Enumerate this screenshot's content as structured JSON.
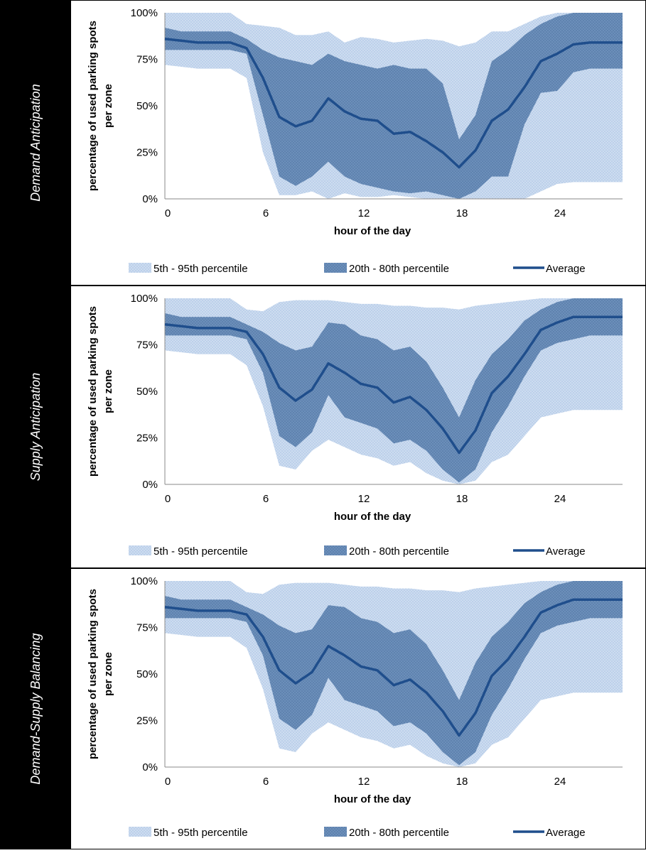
{
  "colors": {
    "outer_band": "#bcd0ea",
    "outer_dots": "#e3ecf8",
    "inner_band": "#6c8fba",
    "inner_dots": "#4f73a1",
    "average": "#1f4e8c",
    "side_panel": "#000000",
    "frame": "#000000"
  },
  "legend": {
    "outer_band": "5th - 95th percentile",
    "inner_band": "20th - 80th percentile",
    "average": "Average"
  },
  "chart_data": [
    {
      "type": "area",
      "panel_label": "Demand Anticipation",
      "xlabel": "hour of the day",
      "ylabel_line1": "percentage of used parking spots",
      "ylabel_line2": "per zone",
      "xlim": [
        0,
        28
      ],
      "ylim": [
        0,
        100
      ],
      "x_ticks": [
        0,
        6,
        12,
        18,
        24
      ],
      "y_ticks": [
        "0%",
        "25%",
        "50%",
        "75%",
        "100%"
      ],
      "x": [
        0,
        1,
        2,
        3,
        4,
        5,
        6,
        7,
        8,
        9,
        10,
        11,
        12,
        13,
        14,
        15,
        16,
        17,
        18,
        19,
        20,
        21,
        22,
        23,
        24,
        25,
        26,
        27,
        28
      ],
      "series": [
        {
          "name": "5th - 95th percentile",
          "role": "p5",
          "values": [
            72,
            71,
            70,
            70,
            70,
            65,
            25,
            2,
            2,
            4,
            0,
            3,
            1,
            1,
            2,
            1,
            0,
            0,
            0,
            0,
            0,
            0,
            0,
            4,
            8,
            9,
            9,
            9,
            9
          ]
        },
        {
          "name": "5th - 95th percentile",
          "role": "p95",
          "values": [
            100,
            100,
            100,
            100,
            100,
            94,
            93,
            92,
            88,
            88,
            90,
            84,
            87,
            86,
            84,
            85,
            86,
            85,
            82,
            84,
            90,
            90,
            94,
            98,
            100,
            100,
            100,
            100,
            100
          ]
        },
        {
          "name": "20th - 80th percentile",
          "role": "p20",
          "values": [
            80,
            80,
            80,
            80,
            80,
            78,
            45,
            12,
            7,
            12,
            20,
            12,
            8,
            6,
            4,
            3,
            4,
            2,
            0,
            4,
            12,
            12,
            40,
            57,
            58,
            68,
            70,
            70,
            70
          ]
        },
        {
          "name": "20th - 80th percentile",
          "role": "p80",
          "values": [
            92,
            90,
            90,
            90,
            90,
            86,
            80,
            76,
            74,
            72,
            78,
            74,
            72,
            70,
            72,
            70,
            70,
            62,
            32,
            45,
            74,
            80,
            88,
            94,
            98,
            100,
            100,
            100,
            100
          ]
        },
        {
          "name": "Average",
          "role": "mean",
          "values": [
            86,
            85,
            84,
            84,
            84,
            81,
            65,
            44,
            39,
            42,
            54,
            47,
            43,
            42,
            35,
            36,
            31,
            25,
            17,
            26,
            42,
            48,
            60,
            74,
            78,
            83,
            84,
            84,
            84
          ]
        }
      ]
    },
    {
      "type": "area",
      "panel_label": "Supply Anticipation",
      "xlabel": "hour of the day",
      "ylabel_line1": "percentage of used parking spots",
      "ylabel_line2": "per zone",
      "xlim": [
        0,
        28
      ],
      "ylim": [
        0,
        100
      ],
      "x_ticks": [
        0,
        6,
        12,
        18,
        24
      ],
      "y_ticks": [
        "0%",
        "25%",
        "50%",
        "75%",
        "100%"
      ],
      "x": [
        0,
        1,
        2,
        3,
        4,
        5,
        6,
        7,
        8,
        9,
        10,
        11,
        12,
        13,
        14,
        15,
        16,
        17,
        18,
        19,
        20,
        21,
        22,
        23,
        24,
        25,
        26,
        27,
        28
      ],
      "series": [
        {
          "name": "5th - 95th percentile",
          "role": "p5",
          "values": [
            72,
            71,
            70,
            70,
            70,
            64,
            42,
            10,
            8,
            18,
            24,
            20,
            16,
            14,
            10,
            12,
            6,
            2,
            0,
            2,
            12,
            16,
            26,
            36,
            38,
            40,
            40,
            40,
            40
          ]
        },
        {
          "name": "5th - 95th percentile",
          "role": "p95",
          "values": [
            100,
            100,
            100,
            100,
            100,
            94,
            93,
            98,
            99,
            99,
            99,
            98,
            97,
            97,
            96,
            96,
            95,
            95,
            94,
            96,
            97,
            98,
            99,
            100,
            100,
            100,
            100,
            100,
            100
          ]
        },
        {
          "name": "20th - 80th percentile",
          "role": "p20",
          "values": [
            80,
            80,
            80,
            80,
            80,
            78,
            60,
            26,
            20,
            28,
            48,
            36,
            33,
            30,
            22,
            24,
            18,
            8,
            1,
            8,
            28,
            42,
            58,
            72,
            76,
            78,
            80,
            80,
            80
          ]
        },
        {
          "name": "20th - 80th percentile",
          "role": "p80",
          "values": [
            92,
            90,
            90,
            90,
            90,
            86,
            82,
            76,
            72,
            74,
            87,
            86,
            80,
            78,
            72,
            74,
            66,
            52,
            36,
            56,
            70,
            78,
            88,
            94,
            98,
            100,
            100,
            100,
            100
          ]
        },
        {
          "name": "Average",
          "role": "mean",
          "values": [
            86,
            85,
            84,
            84,
            84,
            82,
            70,
            52,
            45,
            51,
            65,
            60,
            54,
            52,
            44,
            47,
            40,
            30,
            17,
            29,
            49,
            58,
            70,
            83,
            87,
            90,
            90,
            90,
            90
          ]
        }
      ]
    },
    {
      "type": "area",
      "panel_label": "Demand-Supply Balancing",
      "xlabel": "hour of the day",
      "ylabel_line1": "percentage of used parking spots",
      "ylabel_line2": "per zone",
      "xlim": [
        0,
        28
      ],
      "ylim": [
        0,
        100
      ],
      "x_ticks": [
        0,
        6,
        12,
        18,
        24
      ],
      "y_ticks": [
        "0%",
        "25%",
        "50%",
        "75%",
        "100%"
      ],
      "x": [
        0,
        1,
        2,
        3,
        4,
        5,
        6,
        7,
        8,
        9,
        10,
        11,
        12,
        13,
        14,
        15,
        16,
        17,
        18,
        19,
        20,
        21,
        22,
        23,
        24,
        25,
        26,
        27,
        28
      ],
      "series": [
        {
          "name": "5th - 95th percentile",
          "role": "p5",
          "values": [
            72,
            71,
            70,
            70,
            70,
            64,
            42,
            10,
            8,
            18,
            24,
            20,
            16,
            14,
            10,
            12,
            6,
            2,
            0,
            2,
            12,
            16,
            26,
            36,
            38,
            40,
            40,
            40,
            40
          ]
        },
        {
          "name": "5th - 95th percentile",
          "role": "p95",
          "values": [
            100,
            100,
            100,
            100,
            100,
            94,
            93,
            98,
            99,
            99,
            99,
            98,
            97,
            97,
            96,
            96,
            95,
            95,
            94,
            96,
            97,
            98,
            99,
            100,
            100,
            100,
            100,
            100,
            100
          ]
        },
        {
          "name": "20th - 80th percentile",
          "role": "p20",
          "values": [
            80,
            80,
            80,
            80,
            80,
            78,
            60,
            26,
            20,
            28,
            48,
            36,
            33,
            30,
            22,
            24,
            18,
            8,
            1,
            8,
            28,
            42,
            58,
            72,
            76,
            78,
            80,
            80,
            80
          ]
        },
        {
          "name": "20th - 80th percentile",
          "role": "p80",
          "values": [
            92,
            90,
            90,
            90,
            90,
            86,
            82,
            76,
            72,
            74,
            87,
            86,
            80,
            78,
            72,
            74,
            66,
            52,
            36,
            56,
            70,
            78,
            88,
            94,
            98,
            100,
            100,
            100,
            100
          ]
        },
        {
          "name": "Average",
          "role": "mean",
          "values": [
            86,
            85,
            84,
            84,
            84,
            82,
            70,
            52,
            45,
            51,
            65,
            60,
            54,
            52,
            44,
            47,
            40,
            30,
            17,
            29,
            49,
            58,
            70,
            83,
            87,
            90,
            90,
            90,
            90
          ]
        }
      ]
    }
  ]
}
